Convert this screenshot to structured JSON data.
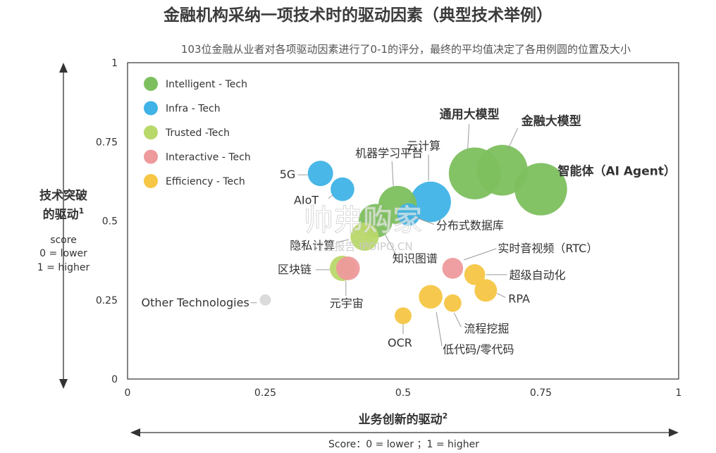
{
  "title": "金融机构采纳一项技术时的驱动因素（典型技术举例）",
  "subtitle": "103位金融从业者对各项驱动因素进行了0-1的评分，最终的平均值决定了各用例圆的位置及大小",
  "watermark": {
    "main": "帅弗购家",
    "sub": "行业报告 IPOIPO.CN"
  },
  "chart_data": {
    "type": "scatter",
    "xlabel": "业务创新的驱动",
    "xlabel_sup": "2",
    "x_note": "Score：0 = lower ；1 = higher",
    "ylabel_line1": "技术突破",
    "ylabel_line2": "的驱动",
    "ylabel_sup": "1",
    "y_note": [
      "score",
      "0 = lower",
      "1 = higher"
    ],
    "xlim": [
      0,
      1
    ],
    "ylim": [
      0,
      1
    ],
    "x_ticks": [
      {
        "v": 0,
        "label": "0"
      },
      {
        "v": 0.25,
        "label": "0.25"
      },
      {
        "v": 0.5,
        "label": "0.5"
      },
      {
        "v": 0.75,
        "label": "0.75"
      },
      {
        "v": 1,
        "label": "1"
      }
    ],
    "y_ticks": [
      {
        "v": 0,
        "label": "0"
      },
      {
        "v": 0.25,
        "label": "0.25"
      },
      {
        "v": 0.5,
        "label": "0.5"
      },
      {
        "v": 0.75,
        "label": "0.75"
      },
      {
        "v": 1,
        "label": "1"
      }
    ],
    "grid": false,
    "legend_position": "top-left",
    "categories": [
      {
        "key": "intelligent",
        "name": "Intelligent - Tech",
        "color": "#7dbf5e"
      },
      {
        "key": "infra",
        "name": "Infra - Tech",
        "color": "#3fb3e6"
      },
      {
        "key": "trusted",
        "name": "Trusted -Tech",
        "color": "#b9d86a"
      },
      {
        "key": "interactive",
        "name": "Interactive - Tech",
        "color": "#ee9a9c"
      },
      {
        "key": "efficiency",
        "name": "Efficiency - Tech",
        "color": "#f6c644"
      },
      {
        "key": "other",
        "name": "Other Technologies",
        "color": "#d9d9d9"
      }
    ],
    "points": [
      {
        "id": "llm-general",
        "label": "通用大模型",
        "cat": "intelligent",
        "x": 0.63,
        "y": 0.65,
        "size": 0.92,
        "bold": true
      },
      {
        "id": "llm-finance",
        "label": "金融大模型",
        "cat": "intelligent",
        "x": 0.68,
        "y": 0.66,
        "size": 0.9,
        "bold": true
      },
      {
        "id": "ai-agent",
        "label": "智能体（AI Agent）",
        "cat": "intelligent",
        "x": 0.75,
        "y": 0.6,
        "size": 0.93,
        "bold": true
      },
      {
        "id": "ml-platform",
        "label": "机器学习平台",
        "cat": "intelligent",
        "x": 0.49,
        "y": 0.55,
        "size": 0.68,
        "bold": false
      },
      {
        "id": "knowledge-graph",
        "label": "知识图谱",
        "cat": "intelligent",
        "x": 0.45,
        "y": 0.5,
        "size": 0.6,
        "bold": false
      },
      {
        "id": "cloud",
        "label": "云计算",
        "cat": "infra",
        "x": 0.55,
        "y": 0.56,
        "size": 0.72,
        "bold": false
      },
      {
        "id": "5g",
        "label": "5G",
        "cat": "infra",
        "x": 0.35,
        "y": 0.65,
        "size": 0.45,
        "bold": false
      },
      {
        "id": "aiot",
        "label": "AIoT",
        "cat": "infra",
        "x": 0.39,
        "y": 0.6,
        "size": 0.42,
        "bold": false
      },
      {
        "id": "distributed-db",
        "label": "分布式数据库",
        "cat": "infra",
        "x": 0.51,
        "y": 0.52,
        "size": 0.4,
        "bold": false
      },
      {
        "id": "privacy-computing",
        "label": "隐私计算",
        "cat": "trusted",
        "x": 0.43,
        "y": 0.45,
        "size": 0.5,
        "bold": false
      },
      {
        "id": "blockchain",
        "label": "区块链",
        "cat": "trusted",
        "x": 0.39,
        "y": 0.35,
        "size": 0.45,
        "bold": false
      },
      {
        "id": "metaverse",
        "label": "元宇宙",
        "cat": "interactive",
        "x": 0.4,
        "y": 0.35,
        "size": 0.42,
        "bold": false
      },
      {
        "id": "rtc",
        "label": "实时音视频（RTC）",
        "cat": "interactive",
        "x": 0.59,
        "y": 0.35,
        "size": 0.37,
        "bold": false
      },
      {
        "id": "hyperautomation",
        "label": "超级自动化",
        "cat": "efficiency",
        "x": 0.63,
        "y": 0.33,
        "size": 0.37,
        "bold": false
      },
      {
        "id": "rpa",
        "label": "RPA",
        "cat": "efficiency",
        "x": 0.65,
        "y": 0.28,
        "size": 0.4,
        "bold": false
      },
      {
        "id": "low-code",
        "label": "低代码/零代码",
        "cat": "efficiency",
        "x": 0.55,
        "y": 0.26,
        "size": 0.42,
        "bold": false
      },
      {
        "id": "process-mining",
        "label": "流程挖掘",
        "cat": "efficiency",
        "x": 0.59,
        "y": 0.24,
        "size": 0.31,
        "bold": false
      },
      {
        "id": "ocr",
        "label": "OCR",
        "cat": "efficiency",
        "x": 0.5,
        "y": 0.2,
        "size": 0.3,
        "bold": false
      },
      {
        "id": "other-tech",
        "label": "Other Technologies",
        "cat": "other",
        "x": 0.25,
        "y": 0.25,
        "size": 0.2,
        "bold": false
      }
    ]
  }
}
